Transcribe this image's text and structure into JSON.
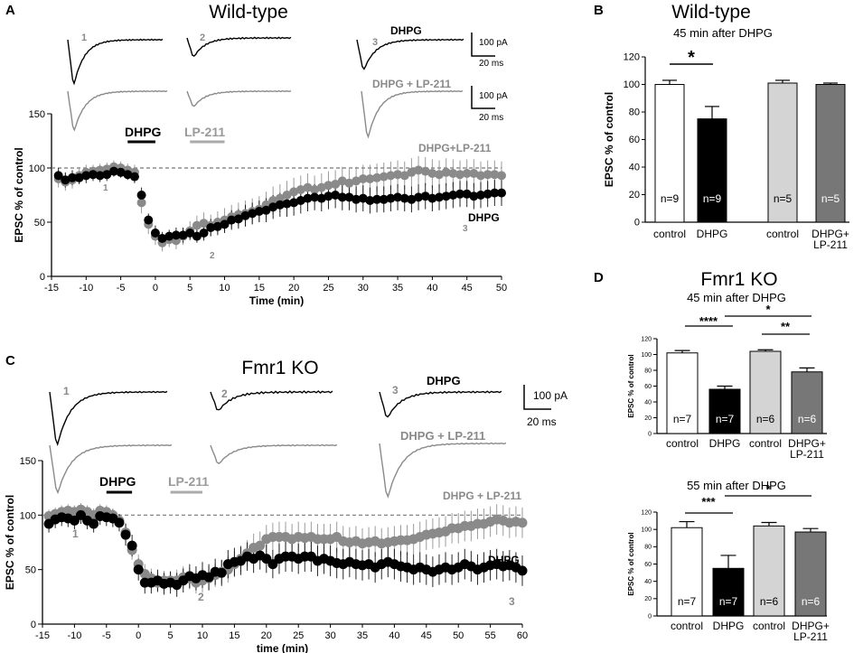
{
  "colors": {
    "black": "#000000",
    "gray": "#8a8a8a",
    "light": "#d4d4d4",
    "dark": "#777777",
    "white": "#ffffff",
    "dash": "#777777"
  },
  "panelA": {
    "letter": "A",
    "title": "Wild-type",
    "trace_numbers": [
      "1",
      "2",
      "3"
    ],
    "trace_label_top": "DHPG",
    "trace_label_bottom": "DHPG + LP-211",
    "scale_pa": "100 pA",
    "scale_ms": "20 ms",
    "drug_bars": [
      "DHPG",
      "LP-211"
    ],
    "series_labels": [
      "DHPG+LP-211",
      "DHPG"
    ],
    "time_markers": [
      "1",
      "2",
      "3"
    ]
  },
  "panelB": {
    "letter": "B",
    "title": "Wild-type",
    "subtitle": "45 min after DHPG",
    "sig": "*"
  },
  "panelC": {
    "letter": "C",
    "title": "Fmr1 KO",
    "trace_numbers": [
      "1",
      "2",
      "3"
    ],
    "trace_label_top": "DHPG",
    "trace_label_bottom": "DHPG + LP-211",
    "scale_pa": "100 pA",
    "scale_ms": "20 ms",
    "drug_bars": [
      "DHPG",
      "LP-211"
    ],
    "series_labels": [
      "DHPG + LP-211",
      "DHPG"
    ],
    "time_markers": [
      "1",
      "2",
      "3"
    ]
  },
  "panelD": {
    "letter": "D",
    "title": "Fmr1 KO",
    "subtitle_top": "45 min after DHPG",
    "subtitle_bottom": "55 min after DHPG",
    "sig_top": [
      "****",
      "*",
      "**"
    ],
    "sig_bottom": [
      "***",
      "*"
    ]
  },
  "chart_data": [
    {
      "id": "A",
      "type": "scatter",
      "title": "Wild-type",
      "xlabel": "Time (min)",
      "ylabel": "EPSC % of control",
      "xlim": [
        -15,
        50
      ],
      "ylim": [
        0,
        150
      ],
      "xticks": [
        -15,
        -10,
        -5,
        0,
        5,
        10,
        15,
        20,
        25,
        30,
        35,
        40,
        45,
        50
      ],
      "yticks": [
        0,
        50,
        100,
        150
      ],
      "xstep": 1,
      "baseline": 100,
      "dhpg_bar": [
        -4,
        0
      ],
      "lp_bar": [
        5,
        10
      ],
      "series": [
        {
          "name": "DHPG",
          "color": "#000000",
          "x0": -14,
          "values": [
            93,
            89,
            91,
            91,
            93,
            94,
            93,
            94,
            97,
            96,
            94,
            92,
            75,
            52,
            40,
            35,
            37,
            38,
            38,
            40,
            37,
            40,
            45,
            46,
            48,
            52,
            53,
            56,
            58,
            60,
            61,
            64,
            66,
            67,
            68,
            70,
            72,
            73,
            72,
            74,
            75,
            73,
            73,
            71,
            72,
            70,
            71,
            71,
            72,
            73,
            72,
            71,
            73,
            74,
            72,
            73,
            74,
            75,
            76,
            76,
            74,
            75,
            76,
            77,
            77
          ],
          "err": [
            7,
            7,
            7,
            6,
            7,
            6,
            6,
            6,
            5,
            5,
            5,
            6,
            7,
            6,
            7,
            6,
            6,
            7,
            7,
            6,
            6,
            7,
            8,
            8,
            8,
            9,
            9,
            10,
            10,
            10,
            11,
            11,
            11,
            12,
            12,
            12,
            12,
            12,
            12,
            12,
            12,
            12,
            12,
            12,
            12,
            12,
            12,
            12,
            12,
            12,
            12,
            12,
            12,
            12,
            12,
            12,
            12,
            12,
            12,
            12,
            12,
            12,
            12,
            12,
            12
          ]
        },
        {
          "name": "DHPG+LP-211",
          "color": "#8a8a8a",
          "x0": -14,
          "values": [
            90,
            87,
            89,
            93,
            96,
            97,
            98,
            99,
            101,
            100,
            98,
            96,
            68,
            48,
            37,
            31,
            34,
            33,
            37,
            42,
            47,
            49,
            47,
            50,
            52,
            55,
            57,
            58,
            60,
            62,
            66,
            70,
            72,
            75,
            78,
            80,
            82,
            80,
            82,
            84,
            85,
            88,
            86,
            88,
            90,
            90,
            91,
            92,
            93,
            94,
            93,
            96,
            98,
            97,
            95,
            94,
            96,
            95,
            94,
            95,
            95,
            93,
            94,
            94,
            93
          ],
          "err": [
            8,
            8,
            8,
            7,
            7,
            6,
            6,
            6,
            6,
            6,
            6,
            7,
            10,
            9,
            8,
            8,
            7,
            8,
            8,
            9,
            9,
            10,
            10,
            10,
            11,
            11,
            11,
            12,
            12,
            12,
            12,
            13,
            13,
            13,
            13,
            13,
            13,
            13,
            13,
            13,
            13,
            13,
            13,
            13,
            13,
            13,
            13,
            13,
            13,
            13,
            13,
            13,
            13,
            13,
            13,
            13,
            13,
            13,
            13,
            13,
            13,
            13,
            13,
            13,
            13
          ]
        }
      ]
    },
    {
      "id": "B",
      "type": "bar",
      "ylabel": "EPSC % of control",
      "ylim": [
        0,
        120
      ],
      "yticks": [
        0,
        20,
        40,
        60,
        80,
        100,
        120
      ],
      "categories": [
        "control",
        "DHPG",
        "control",
        "DHPG+ LP-211"
      ],
      "values": [
        100,
        75,
        101,
        100
      ],
      "errors": [
        3,
        9,
        2,
        1
      ],
      "n": [
        "n=9",
        "n=9",
        "n=5",
        "n=5"
      ],
      "fills": [
        "#ffffff",
        "#000000",
        "#d4d4d4",
        "#777777"
      ]
    },
    {
      "id": "C",
      "type": "scatter",
      "title": "Fmr1 KO",
      "xlabel": "time (min)",
      "ylabel": "EPSC % of control",
      "xlim": [
        -15,
        60
      ],
      "ylim": [
        0,
        150
      ],
      "xticks": [
        -15,
        -10,
        -5,
        0,
        5,
        10,
        15,
        20,
        25,
        30,
        35,
        40,
        45,
        50,
        55,
        60
      ],
      "yticks": [
        0,
        50,
        100,
        150
      ],
      "xstep": 1,
      "baseline": 100,
      "dhpg_bar": [
        -5,
        -1
      ],
      "lp_bar": [
        5,
        10
      ],
      "series": [
        {
          "name": "DHPG",
          "color": "#000000",
          "x0": -14,
          "values": [
            92,
            96,
            98,
            97,
            95,
            100,
            95,
            92,
            99,
            98,
            97,
            93,
            82,
            72,
            50,
            38,
            38,
            40,
            37,
            38,
            36,
            40,
            44,
            42,
            45,
            43,
            48,
            47,
            55,
            57,
            58,
            62,
            60,
            63,
            60,
            55,
            60,
            62,
            62,
            60,
            62,
            62,
            58,
            60,
            58,
            56,
            55,
            57,
            55,
            54,
            55,
            52,
            55,
            57,
            55,
            53,
            52,
            50,
            52,
            50,
            48,
            50,
            52,
            50,
            52,
            55,
            53,
            50,
            52,
            54,
            55,
            53,
            54,
            52,
            49
          ],
          "err": [
            8,
            8,
            8,
            8,
            8,
            8,
            8,
            8,
            8,
            8,
            8,
            8,
            10,
            10,
            10,
            10,
            10,
            10,
            10,
            10,
            11,
            11,
            11,
            11,
            12,
            12,
            12,
            12,
            13,
            13,
            13,
            13,
            13,
            13,
            13,
            13,
            14,
            14,
            14,
            14,
            14,
            14,
            14,
            14,
            14,
            14,
            14,
            14,
            14,
            14,
            14,
            14,
            14,
            14,
            14,
            14,
            14,
            14,
            14,
            14,
            14,
            14,
            14,
            14,
            14,
            14,
            14,
            14,
            14,
            14,
            14,
            14,
            14,
            14,
            14
          ]
        },
        {
          "name": "DHPG + LP-211",
          "color": "#8a8a8a",
          "x0": -14,
          "values": [
            99,
            101,
            103,
            104,
            103,
            105,
            103,
            100,
            104,
            103,
            100,
            95,
            84,
            68,
            55,
            46,
            42,
            38,
            40,
            40,
            40,
            43,
            42,
            38,
            40,
            42,
            45,
            48,
            50,
            55,
            60,
            65,
            70,
            72,
            78,
            80,
            80,
            80,
            78,
            80,
            79,
            80,
            78,
            78,
            78,
            80,
            76,
            75,
            76,
            74,
            75,
            76,
            74,
            75,
            76,
            77,
            77,
            78,
            80,
            82,
            83,
            84,
            85,
            88,
            88,
            90,
            90,
            92,
            92,
            94,
            96,
            95,
            93,
            94,
            93
          ],
          "err": [
            6,
            6,
            6,
            6,
            6,
            6,
            6,
            6,
            6,
            6,
            6,
            6,
            9,
            9,
            9,
            9,
            9,
            9,
            9,
            9,
            10,
            10,
            10,
            10,
            11,
            11,
            11,
            11,
            12,
            12,
            12,
            12,
            13,
            13,
            13,
            13,
            14,
            14,
            14,
            14,
            14,
            14,
            14,
            14,
            14,
            14,
            14,
            14,
            14,
            14,
            14,
            14,
            14,
            14,
            14,
            14,
            14,
            14,
            14,
            14,
            14,
            14,
            14,
            14,
            14,
            14,
            14,
            14,
            14,
            14,
            14,
            14,
            14,
            14,
            14
          ]
        }
      ]
    },
    {
      "id": "D1",
      "type": "bar",
      "ylabel": "EPSC % of control",
      "ylim": [
        0,
        120
      ],
      "yticks": [
        0,
        20,
        40,
        60,
        80,
        100,
        120
      ],
      "categories": [
        "control",
        "DHPG",
        "control",
        "DHPG+ LP-211"
      ],
      "values": [
        102,
        56,
        104,
        78
      ],
      "errors": [
        3,
        4,
        2,
        5
      ],
      "n": [
        "n=7",
        "n=7",
        "n=6",
        "n=6"
      ],
      "fills": [
        "#ffffff",
        "#000000",
        "#d4d4d4",
        "#777777"
      ]
    },
    {
      "id": "D2",
      "type": "bar",
      "ylabel": "EPSC % of control",
      "ylim": [
        0,
        120
      ],
      "yticks": [
        0,
        20,
        40,
        60,
        80,
        100,
        120
      ],
      "categories": [
        "control",
        "DHPG",
        "control",
        "DHPG+ LP-211"
      ],
      "values": [
        102,
        55,
        104,
        97
      ],
      "errors": [
        7,
        15,
        4,
        4
      ],
      "n": [
        "n=7",
        "n=7",
        "n=6",
        "n=6"
      ],
      "fills": [
        "#ffffff",
        "#000000",
        "#d4d4d4",
        "#777777"
      ]
    }
  ]
}
